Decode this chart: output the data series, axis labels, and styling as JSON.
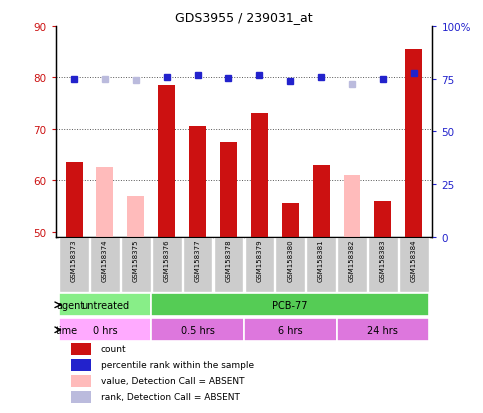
{
  "title": "GDS3955 / 239031_at",
  "samples": [
    "GSM158373",
    "GSM158374",
    "GSM158375",
    "GSM158376",
    "GSM158377",
    "GSM158378",
    "GSM158379",
    "GSM158380",
    "GSM158381",
    "GSM158382",
    "GSM158383",
    "GSM158384"
  ],
  "count_values": [
    63.5,
    null,
    null,
    78.5,
    70.5,
    67.5,
    73.0,
    55.5,
    63.0,
    null,
    56.0,
    85.5
  ],
  "count_absent": [
    null,
    62.5,
    57.0,
    null,
    null,
    null,
    null,
    null,
    null,
    61.0,
    null,
    null
  ],
  "rank_present": [
    75.0,
    null,
    null,
    76.0,
    76.5,
    75.5,
    76.5,
    74.0,
    76.0,
    null,
    75.0,
    77.5
  ],
  "rank_absent": [
    null,
    75.0,
    74.5,
    null,
    null,
    null,
    null,
    null,
    null,
    72.5,
    null,
    null
  ],
  "ylim_left": [
    49,
    90
  ],
  "ylim_right": [
    0,
    100
  ],
  "yticks_left": [
    50,
    60,
    70,
    80,
    90
  ],
  "yticks_right": [
    0,
    25,
    50,
    75,
    100
  ],
  "ytick_right_labels": [
    "0",
    "25",
    "50",
    "75",
    "100%"
  ],
  "color_count": "#cc1111",
  "color_rank": "#2222cc",
  "color_count_absent": "#ffbbbb",
  "color_rank_absent": "#bbbbdd",
  "agent_groups": [
    {
      "label": "untreated",
      "start": 0,
      "end": 3,
      "color": "#88ee88"
    },
    {
      "label": "PCB-77",
      "start": 3,
      "end": 12,
      "color": "#55cc55"
    }
  ],
  "time_groups": [
    {
      "label": "0 hrs",
      "start": 0,
      "end": 3,
      "color": "#ffaaff"
    },
    {
      "label": "0.5 hrs",
      "start": 3,
      "end": 6,
      "color": "#ee88ee"
    },
    {
      "label": "6 hrs",
      "start": 6,
      "end": 9,
      "color": "#ee88ee"
    },
    {
      "label": "24 hrs",
      "start": 9,
      "end": 12,
      "color": "#ee88ee"
    }
  ],
  "legend_items": [
    {
      "label": "count",
      "color": "#cc1111"
    },
    {
      "label": "percentile rank within the sample",
      "color": "#2222cc"
    },
    {
      "label": "value, Detection Call = ABSENT",
      "color": "#ffbbbb"
    },
    {
      "label": "rank, Detection Call = ABSENT",
      "color": "#bbbbdd"
    }
  ],
  "xticklabel_bg": "#cccccc",
  "border_color": "#000000",
  "grid_color": "#555555"
}
